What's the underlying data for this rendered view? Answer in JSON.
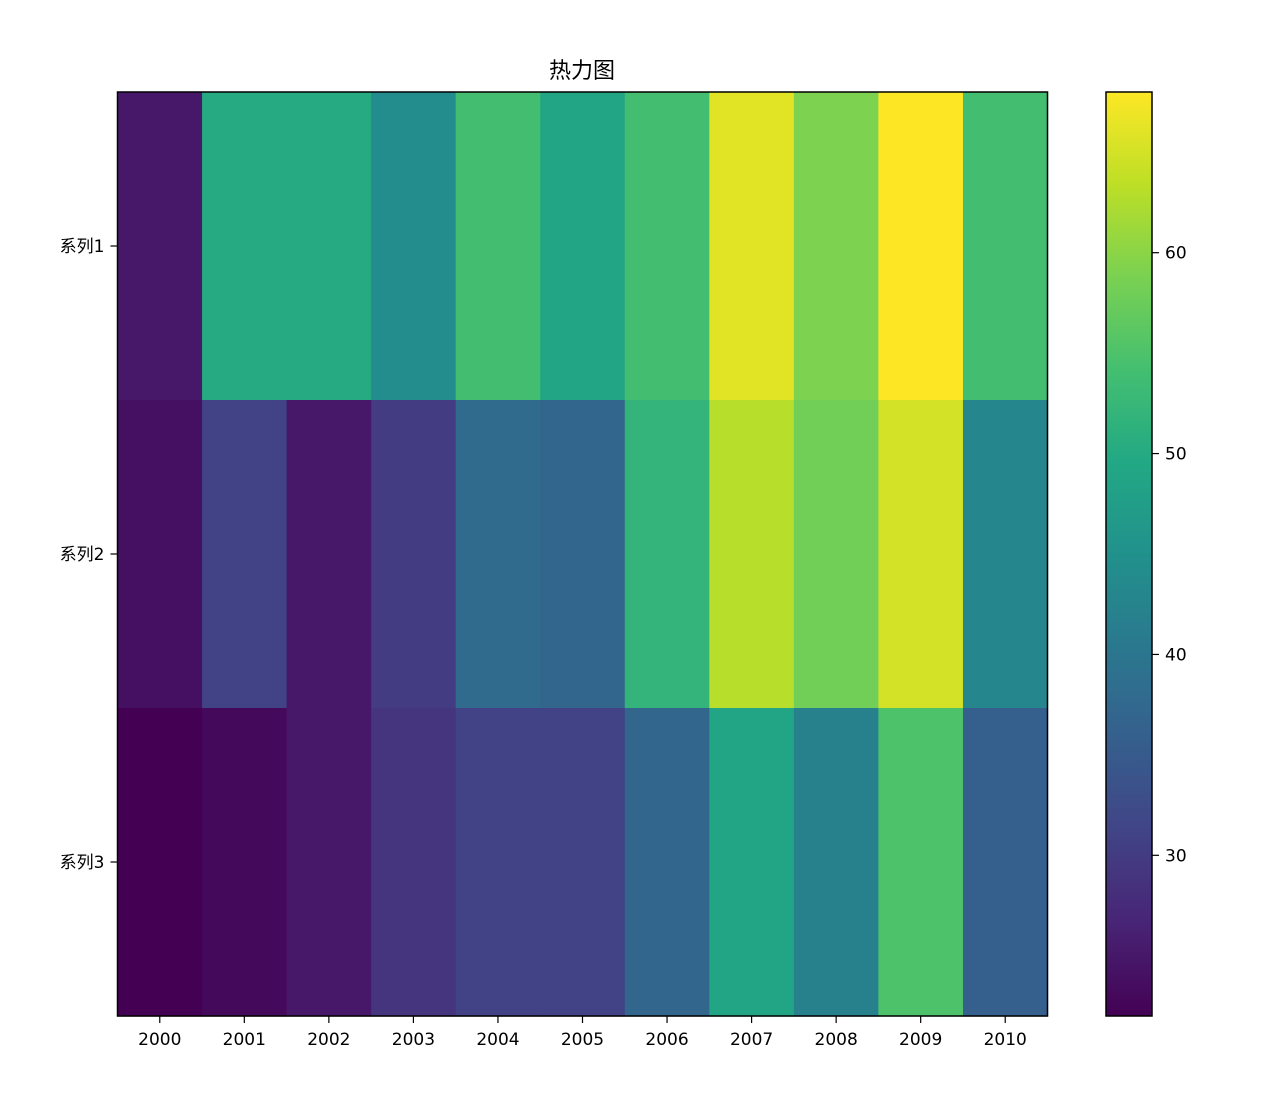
{
  "chart_data": {
    "type": "heatmap",
    "title": "热力图",
    "xlabel": "",
    "ylabel": "",
    "x_categories": [
      "2000",
      "2001",
      "2002",
      "2003",
      "2004",
      "2005",
      "2006",
      "2007",
      "2008",
      "2009",
      "2010"
    ],
    "y_categories": [
      "系列1",
      "系列2",
      "系列3"
    ],
    "values": [
      [
        25,
        50,
        50,
        44,
        54,
        49,
        54,
        66,
        59,
        68,
        54
      ],
      [
        24,
        31,
        25,
        30,
        38,
        37,
        52,
        63,
        58,
        65,
        43
      ],
      [
        22,
        23,
        25,
        29,
        31,
        31,
        37,
        49,
        42,
        55,
        36
      ]
    ],
    "colormap": "viridis",
    "colorbar": {
      "range": [
        22,
        68
      ],
      "ticks": [
        30,
        40,
        50,
        60
      ],
      "tick_labels": [
        "30",
        "40",
        "50",
        "60"
      ]
    },
    "grid": false
  }
}
